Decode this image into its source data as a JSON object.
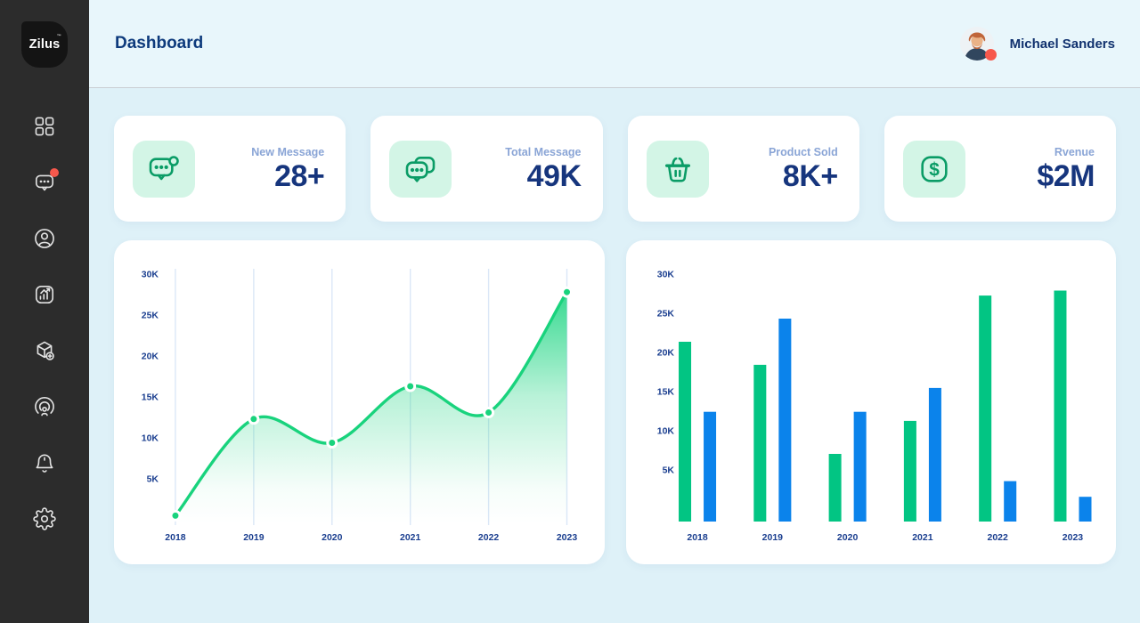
{
  "brand": {
    "logo_text": "Zilus",
    "trademark": "™"
  },
  "sidebar": {
    "badge_color": "#f7584c",
    "items": [
      {
        "name": "dashboard",
        "icon": "grid-icon",
        "badge": false
      },
      {
        "name": "messages",
        "icon": "chat-icon",
        "badge": true
      },
      {
        "name": "profile",
        "icon": "user-icon",
        "badge": false
      },
      {
        "name": "analytics",
        "icon": "chart-icon",
        "badge": false
      },
      {
        "name": "products",
        "icon": "cube-plus-icon",
        "badge": false
      },
      {
        "name": "broadcast",
        "icon": "podcast-icon",
        "badge": false
      },
      {
        "name": "notifications",
        "icon": "bell-icon",
        "badge": false
      },
      {
        "name": "settings",
        "icon": "gear-icon",
        "badge": false
      }
    ]
  },
  "header": {
    "title": "Dashboard",
    "user": {
      "name": "Michael Sanders",
      "presence": "online"
    }
  },
  "stats": [
    {
      "label": "New Message",
      "value": "28+",
      "icon": "chat-badge-icon"
    },
    {
      "label": "Total Message",
      "value": "49K",
      "icon": "chat-double-icon"
    },
    {
      "label": "Product Sold",
      "value": "8K+",
      "icon": "basket-icon"
    },
    {
      "label": "Rvenue",
      "value": "$2M",
      "icon": "dollar-icon"
    }
  ],
  "colors": {
    "sidebar_bg": "#2c2c2c",
    "content_bg": "#def1f8",
    "header_bg": "#e8f6fb",
    "card_bg": "#ffffff",
    "accent_navy": "#16357d",
    "label_blue": "#8aa5d6",
    "mint_tile": "#d3f5e6",
    "icon_green": "#0a9c66",
    "line_green": "#19d37d",
    "bar_green": "#02c583",
    "bar_blue": "#0b83eb",
    "badge_red": "#f7584c",
    "grid_blue": "#dbe7f7"
  },
  "chart_data": [
    {
      "type": "area",
      "x": [
        "2018",
        "2019",
        "2020",
        "2021",
        "2022",
        "2023"
      ],
      "series": [
        {
          "name": "messages",
          "color": "#19d37d",
          "values_k": [
            0.5,
            12.3,
            9.4,
            16.3,
            13.1,
            27.8
          ]
        }
      ],
      "y_ticks": [
        "30K",
        "25K",
        "20K",
        "15K",
        "10K",
        "5K"
      ],
      "ylim_k": [
        0,
        30
      ],
      "grid": "vertical",
      "legend": "none"
    },
    {
      "type": "bar",
      "categories": [
        "2018",
        "2019",
        "2020",
        "2021",
        "2022",
        "2023"
      ],
      "series": [
        {
          "name": "green-series",
          "color": "#02c583",
          "values_k": [
            21.8,
            19.0,
            8.2,
            12.2,
            27.4,
            28.0
          ]
        },
        {
          "name": "blue-series",
          "color": "#0b83eb",
          "values_k": [
            13.3,
            24.6,
            13.3,
            16.2,
            4.9,
            3.0
          ]
        }
      ],
      "y_ticks": [
        "30K",
        "25K",
        "20K",
        "15K",
        "10K",
        "5K"
      ],
      "ylim_k": [
        0,
        30
      ],
      "grid": "none",
      "legend": "none"
    }
  ]
}
